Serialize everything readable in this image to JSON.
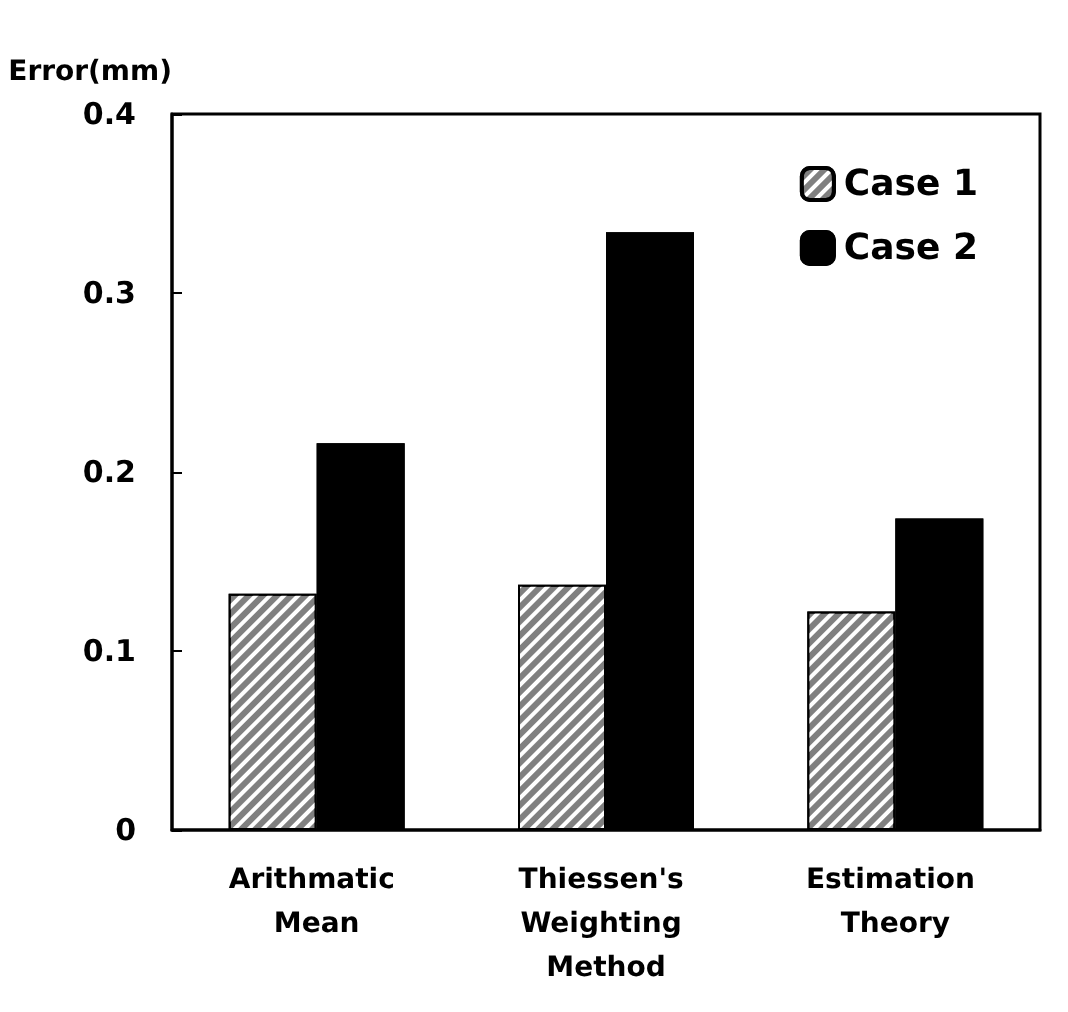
{
  "chart_data": {
    "type": "bar",
    "ylabel": "Error(mm)",
    "categories": [
      "Arithmatic Mean",
      "Thiessen's Weighting Method",
      "Estimation Theory"
    ],
    "series": [
      {
        "name": "Case 1",
        "color": "#808080",
        "values": [
          0.132,
          0.137,
          0.122
        ]
      },
      {
        "name": "Case 2",
        "color": "#000000",
        "values": [
          0.216,
          0.334,
          0.174
        ]
      }
    ],
    "ylim": [
      0,
      0.4
    ],
    "yticks": [
      0,
      0.1,
      0.2,
      0.3,
      0.4
    ],
    "grid": false,
    "legend": "top right"
  }
}
